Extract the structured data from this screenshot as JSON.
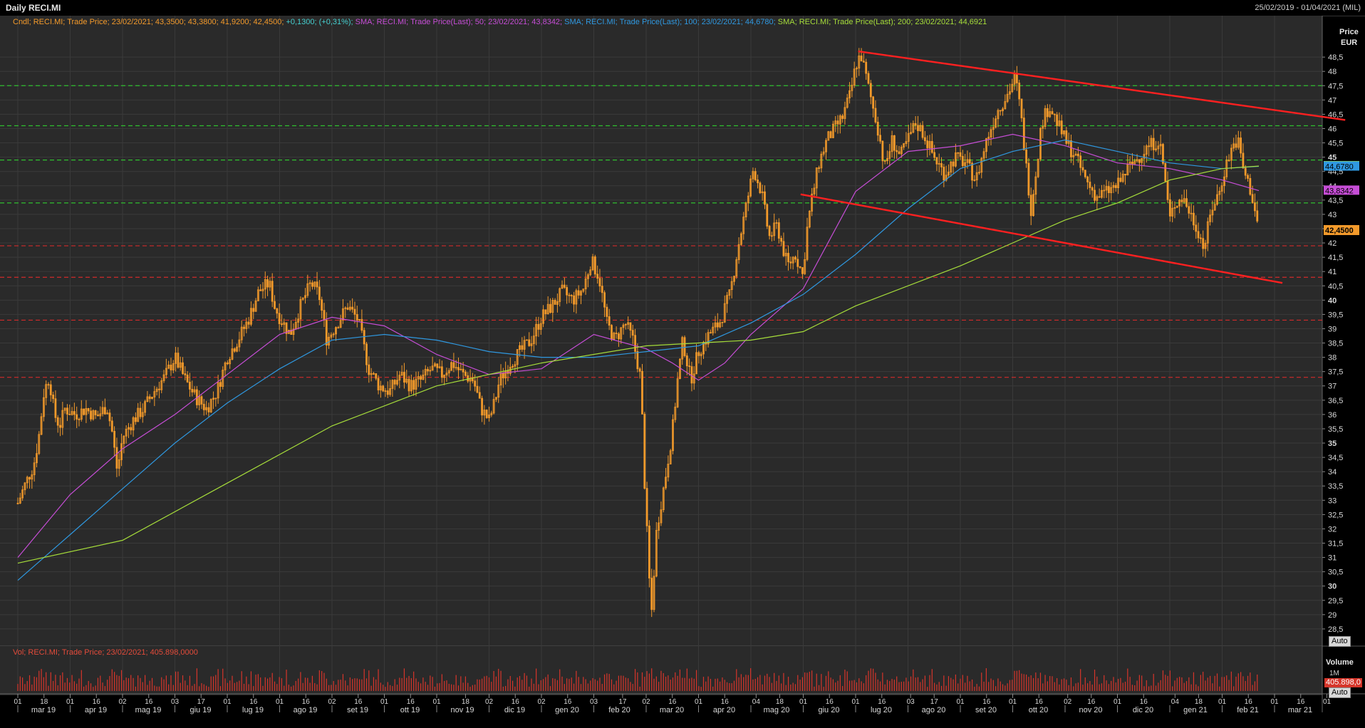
{
  "window": {
    "title": "Daily RECI.MI",
    "date_range": "25/02/2019 - 01/04/2021 (MIL)"
  },
  "legend": {
    "candle": "Cndl; RECI.MI; Trade Price; 23/02/2021; 43,3500; 43,3800; 41,9200; 42,4500; ",
    "candle_change": "+0,1300; (+0,31%);",
    "sma50": " SMA; RECI.MI; Trade Price(Last); 50; 23/02/2021; 43,8342;",
    "sma100": " SMA; RECI.MI; Trade Price(Last); 100; 23/02/2021; 44,6780;",
    "sma200": " SMA; RECI.MI; Trade Price(Last); 200; 23/02/2021; 44,6921"
  },
  "volume_legend": "Vol; RECI.MI; Trade Price; 23/02/2021; 405.898,0000",
  "price_axis": {
    "title_line1": "Price",
    "title_line2": "EUR",
    "auto_label": "Auto"
  },
  "volume_axis": {
    "title": "Volume",
    "tick_1m": "1M",
    "auto_label": "Auto",
    "last_volume_tag": "405.898,0"
  },
  "colors": {
    "candle": "#f39a2b",
    "sma50": "#c64dd6",
    "sma100": "#2f98e0",
    "sma200": "#a6dd3a",
    "trendline": "#ff2020",
    "support_green": "#2fbf2f",
    "support_red": "#d12a2a",
    "volume": "#d6352a"
  },
  "chart_data": {
    "type": "candlestick",
    "symbol": "RECI.MI",
    "interval": "Daily",
    "currency": "EUR",
    "ylim": [
      28,
      49.5
    ],
    "y_ticks": [
      "28,5",
      "29",
      "29,5",
      "30",
      "30,5",
      "31",
      "31,5",
      "32",
      "32,5",
      "33",
      "33,5",
      "34",
      "34,5",
      "35",
      "35,5",
      "36",
      "36,5",
      "37",
      "37,5",
      "38",
      "38,5",
      "39",
      "39,5",
      "40",
      "40,5",
      "41",
      "41,5",
      "42",
      "42,5",
      "43",
      "43,5",
      "44",
      "44,5",
      "45",
      "45,5",
      "46",
      "46,5",
      "47",
      "47,5",
      "48",
      "48,5"
    ],
    "bold_ticks": [
      "30",
      "35",
      "40",
      "45"
    ],
    "x_day_ticks": [
      {
        "label": "01",
        "m": 0
      },
      {
        "label": "18",
        "m": 0.5
      },
      {
        "label": "01",
        "m": 1
      },
      {
        "label": "16",
        "m": 1.5
      },
      {
        "label": "02",
        "m": 2
      },
      {
        "label": "16",
        "m": 2.5
      },
      {
        "label": "03",
        "m": 3
      },
      {
        "label": "17",
        "m": 3.5
      },
      {
        "label": "01",
        "m": 4
      },
      {
        "label": "16",
        "m": 4.5
      },
      {
        "label": "01",
        "m": 5
      },
      {
        "label": "16",
        "m": 5.5
      },
      {
        "label": "02",
        "m": 6
      },
      {
        "label": "16",
        "m": 6.5
      },
      {
        "label": "01",
        "m": 7
      },
      {
        "label": "16",
        "m": 7.5
      },
      {
        "label": "01",
        "m": 8
      },
      {
        "label": "18",
        "m": 8.55
      },
      {
        "label": "02",
        "m": 9
      },
      {
        "label": "16",
        "m": 9.5
      },
      {
        "label": "02",
        "m": 10
      },
      {
        "label": "16",
        "m": 10.5
      },
      {
        "label": "03",
        "m": 11
      },
      {
        "label": "17",
        "m": 11.55
      },
      {
        "label": "02",
        "m": 12
      },
      {
        "label": "16",
        "m": 12.5
      },
      {
        "label": "01",
        "m": 13
      },
      {
        "label": "16",
        "m": 13.5
      },
      {
        "label": "04",
        "m": 14.1
      },
      {
        "label": "18",
        "m": 14.55
      },
      {
        "label": "01",
        "m": 15
      },
      {
        "label": "16",
        "m": 15.5
      },
      {
        "label": "01",
        "m": 16
      },
      {
        "label": "16",
        "m": 16.5
      },
      {
        "label": "03",
        "m": 17.05
      },
      {
        "label": "17",
        "m": 17.5
      },
      {
        "label": "01",
        "m": 18
      },
      {
        "label": "16",
        "m": 18.5
      },
      {
        "label": "01",
        "m": 19
      },
      {
        "label": "16",
        "m": 19.5
      },
      {
        "label": "02",
        "m": 20.05
      },
      {
        "label": "16",
        "m": 20.5
      },
      {
        "label": "01",
        "m": 21
      },
      {
        "label": "16",
        "m": 21.5
      },
      {
        "label": "04",
        "m": 22.1
      },
      {
        "label": "18",
        "m": 22.55
      },
      {
        "label": "01",
        "m": 23
      },
      {
        "label": "16",
        "m": 23.5
      },
      {
        "label": "01",
        "m": 24
      },
      {
        "label": "16",
        "m": 24.5
      },
      {
        "label": "01",
        "m": 25
      }
    ],
    "x_month_labels": [
      {
        "label": "mar 19",
        "m": 0
      },
      {
        "label": "apr 19",
        "m": 1
      },
      {
        "label": "mag 19",
        "m": 2
      },
      {
        "label": "giu 19",
        "m": 3
      },
      {
        "label": "lug 19",
        "m": 4
      },
      {
        "label": "ago 19",
        "m": 5
      },
      {
        "label": "set 19",
        "m": 6
      },
      {
        "label": "ott 19",
        "m": 7
      },
      {
        "label": "nov 19",
        "m": 8
      },
      {
        "label": "dic 19",
        "m": 9
      },
      {
        "label": "gen 20",
        "m": 10
      },
      {
        "label": "feb 20",
        "m": 11
      },
      {
        "label": "mar 20",
        "m": 12
      },
      {
        "label": "apr 20",
        "m": 13
      },
      {
        "label": "mag 20",
        "m": 14
      },
      {
        "label": "giu 20",
        "m": 15
      },
      {
        "label": "lug 20",
        "m": 16
      },
      {
        "label": "ago 20",
        "m": 17
      },
      {
        "label": "set 20",
        "m": 18
      },
      {
        "label": "ott 20",
        "m": 19
      },
      {
        "label": "nov 20",
        "m": 20
      },
      {
        "label": "dic 20",
        "m": 21
      },
      {
        "label": "gen 21",
        "m": 22
      },
      {
        "label": "feb 21",
        "m": 23
      },
      {
        "label": "mar 21",
        "m": 24
      }
    ],
    "price_path": [
      [
        0,
        32.9
      ],
      [
        0.15,
        33.6
      ],
      [
        0.3,
        34.2
      ],
      [
        0.4,
        35.2
      ],
      [
        0.5,
        36.8
      ],
      [
        0.6,
        37.3
      ],
      [
        0.7,
        36.0
      ],
      [
        0.8,
        35.6
      ],
      [
        0.9,
        36.2
      ],
      [
        1.1,
        36.0
      ],
      [
        1.3,
        36.2
      ],
      [
        1.5,
        35.9
      ],
      [
        1.7,
        36.3
      ],
      [
        1.8,
        35.4
      ],
      [
        1.9,
        34.0
      ],
      [
        2.0,
        35.2
      ],
      [
        2.2,
        35.8
      ],
      [
        2.4,
        36.2
      ],
      [
        2.6,
        36.8
      ],
      [
        2.8,
        37.3
      ],
      [
        3.0,
        38.0
      ],
      [
        3.2,
        37.2
      ],
      [
        3.4,
        36.6
      ],
      [
        3.6,
        36.2
      ],
      [
        3.8,
        36.8
      ],
      [
        4.0,
        38.0
      ],
      [
        4.2,
        38.6
      ],
      [
        4.4,
        39.3
      ],
      [
        4.6,
        40.3
      ],
      [
        4.8,
        40.6
      ],
      [
        4.9,
        39.8
      ],
      [
        5.0,
        39.4
      ],
      [
        5.2,
        38.8
      ],
      [
        5.4,
        39.8
      ],
      [
        5.6,
        40.6
      ],
      [
        5.75,
        40.2
      ],
      [
        5.9,
        38.6
      ],
      [
        6.1,
        39.2
      ],
      [
        6.3,
        39.8
      ],
      [
        6.5,
        39.3
      ],
      [
        6.7,
        37.6
      ],
      [
        6.9,
        37.0
      ],
      [
        7.1,
        36.8
      ],
      [
        7.3,
        37.4
      ],
      [
        7.5,
        37.0
      ],
      [
        7.7,
        37.2
      ],
      [
        7.9,
        37.6
      ],
      [
        8.1,
        37.4
      ],
      [
        8.3,
        37.8
      ],
      [
        8.5,
        37.4
      ],
      [
        8.7,
        37.2
      ],
      [
        8.85,
        36.2
      ],
      [
        9.0,
        35.8
      ],
      [
        9.1,
        36.4
      ],
      [
        9.2,
        37.2
      ],
      [
        9.4,
        37.8
      ],
      [
        9.6,
        38.2
      ],
      [
        9.8,
        38.6
      ],
      [
        10.0,
        39.4
      ],
      [
        10.2,
        39.8
      ],
      [
        10.4,
        40.3
      ],
      [
        10.6,
        40.0
      ],
      [
        10.8,
        40.4
      ],
      [
        10.95,
        41.4
      ],
      [
        11.1,
        40.8
      ],
      [
        11.25,
        39.2
      ],
      [
        11.4,
        38.6
      ],
      [
        11.6,
        39.2
      ],
      [
        11.75,
        38.6
      ],
      [
        11.9,
        37.2
      ],
      [
        11.96,
        34.0
      ],
      [
        12.05,
        30.5
      ],
      [
        12.1,
        29.0
      ],
      [
        12.2,
        32.0
      ],
      [
        12.35,
        33.6
      ],
      [
        12.5,
        35.4
      ],
      [
        12.6,
        37.2
      ],
      [
        12.7,
        38.6
      ],
      [
        12.85,
        37.2
      ],
      [
        13.0,
        38.2
      ],
      [
        13.2,
        38.8
      ],
      [
        13.4,
        39.2
      ],
      [
        13.6,
        40.2
      ],
      [
        13.75,
        41.8
      ],
      [
        13.9,
        43.2
      ],
      [
        14.05,
        44.6
      ],
      [
        14.2,
        43.8
      ],
      [
        14.35,
        42.2
      ],
      [
        14.5,
        42.6
      ],
      [
        14.7,
        41.2
      ],
      [
        14.85,
        41.6
      ],
      [
        15.0,
        40.8
      ],
      [
        15.05,
        42.2
      ],
      [
        15.15,
        43.4
      ],
      [
        15.3,
        44.8
      ],
      [
        15.45,
        45.6
      ],
      [
        15.6,
        46.0
      ],
      [
        15.75,
        46.4
      ],
      [
        15.9,
        47.2
      ],
      [
        16.0,
        48.2
      ],
      [
        16.1,
        48.6
      ],
      [
        16.2,
        47.8
      ],
      [
        16.3,
        47.0
      ],
      [
        16.45,
        45.8
      ],
      [
        16.55,
        44.6
      ],
      [
        16.7,
        45.6
      ],
      [
        16.85,
        45.0
      ],
      [
        17.0,
        45.6
      ],
      [
        17.15,
        46.2
      ],
      [
        17.3,
        45.8
      ],
      [
        17.5,
        45.0
      ],
      [
        17.7,
        44.4
      ],
      [
        17.9,
        45.0
      ],
      [
        18.1,
        44.8
      ],
      [
        18.3,
        44.2
      ],
      [
        18.5,
        45.6
      ],
      [
        18.7,
        46.6
      ],
      [
        18.9,
        47.2
      ],
      [
        19.05,
        47.8
      ],
      [
        19.15,
        46.6
      ],
      [
        19.25,
        44.8
      ],
      [
        19.35,
        43.2
      ],
      [
        19.45,
        44.6
      ],
      [
        19.55,
        46.2
      ],
      [
        19.7,
        46.8
      ],
      [
        19.85,
        46.2
      ],
      [
        20.0,
        45.6
      ],
      [
        20.2,
        45.0
      ],
      [
        20.4,
        44.2
      ],
      [
        20.6,
        43.6
      ],
      [
        20.8,
        43.8
      ],
      [
        21.0,
        44.0
      ],
      [
        21.2,
        44.6
      ],
      [
        21.4,
        45.0
      ],
      [
        21.6,
        45.4
      ],
      [
        21.8,
        45.6
      ],
      [
        21.9,
        44.4
      ],
      [
        22.0,
        42.8
      ],
      [
        22.1,
        43.4
      ],
      [
        22.25,
        43.6
      ],
      [
        22.4,
        43.0
      ],
      [
        22.55,
        42.4
      ],
      [
        22.65,
        41.8
      ],
      [
        22.8,
        43.2
      ],
      [
        22.95,
        43.8
      ],
      [
        23.05,
        44.6
      ],
      [
        23.2,
        45.4
      ],
      [
        23.3,
        45.6
      ],
      [
        23.4,
        44.6
      ],
      [
        23.55,
        43.8
      ],
      [
        23.7,
        42.45
      ]
    ],
    "series": [
      {
        "name": "SMA 50",
        "last": "43,8342",
        "path": [
          [
            0,
            31.0
          ],
          [
            1,
            33.2
          ],
          [
            2,
            34.8
          ],
          [
            3,
            36.0
          ],
          [
            4,
            37.4
          ],
          [
            5,
            38.8
          ],
          [
            6,
            39.4
          ],
          [
            7,
            39.1
          ],
          [
            8,
            38.1
          ],
          [
            9,
            37.4
          ],
          [
            10,
            37.6
          ],
          [
            11,
            38.8
          ],
          [
            12,
            38.3
          ],
          [
            12.5,
            37.8
          ],
          [
            13,
            37.2
          ],
          [
            13.5,
            37.8
          ],
          [
            14,
            38.8
          ],
          [
            15,
            40.4
          ],
          [
            16,
            43.8
          ],
          [
            17,
            45.2
          ],
          [
            18,
            45.4
          ],
          [
            19,
            45.8
          ],
          [
            20,
            45.4
          ],
          [
            21,
            44.8
          ],
          [
            22,
            44.6
          ],
          [
            23,
            44.2
          ],
          [
            23.7,
            43.83
          ]
        ]
      },
      {
        "name": "SMA 100",
        "last": "44,6780",
        "path": [
          [
            0,
            30.2
          ],
          [
            1,
            31.8
          ],
          [
            2,
            33.4
          ],
          [
            3,
            35.0
          ],
          [
            4,
            36.4
          ],
          [
            5,
            37.6
          ],
          [
            6,
            38.6
          ],
          [
            7,
            38.8
          ],
          [
            8,
            38.6
          ],
          [
            9,
            38.2
          ],
          [
            10,
            38.0
          ],
          [
            11,
            38.0
          ],
          [
            12,
            38.2
          ],
          [
            13,
            38.4
          ],
          [
            14,
            39.2
          ],
          [
            15,
            40.2
          ],
          [
            16,
            41.6
          ],
          [
            17,
            43.2
          ],
          [
            18,
            44.6
          ],
          [
            19,
            45.2
          ],
          [
            20,
            45.6
          ],
          [
            21,
            45.2
          ],
          [
            22,
            44.8
          ],
          [
            23,
            44.6
          ],
          [
            23.7,
            44.68
          ]
        ]
      },
      {
        "name": "SMA 200",
        "last": "44,6921",
        "path": [
          [
            0,
            30.8
          ],
          [
            2,
            31.6
          ],
          [
            4,
            33.6
          ],
          [
            6,
            35.6
          ],
          [
            8,
            37.0
          ],
          [
            10,
            37.8
          ],
          [
            12,
            38.4
          ],
          [
            14,
            38.6
          ],
          [
            15,
            38.9
          ],
          [
            16,
            39.8
          ],
          [
            18,
            41.2
          ],
          [
            19,
            42.0
          ],
          [
            20,
            42.8
          ],
          [
            21,
            43.4
          ],
          [
            22,
            44.2
          ],
          [
            23,
            44.6
          ],
          [
            23.7,
            44.69
          ]
        ]
      }
    ],
    "horizontal_levels": [
      {
        "y": 47.5,
        "kind": "green"
      },
      {
        "y": 46.1,
        "kind": "green"
      },
      {
        "y": 44.9,
        "kind": "green"
      },
      {
        "y": 43.4,
        "kind": "green"
      },
      {
        "y": 41.9,
        "kind": "red"
      },
      {
        "y": 40.8,
        "kind": "red"
      },
      {
        "y": 39.3,
        "kind": "red"
      },
      {
        "y": 37.3,
        "kind": "red"
      }
    ],
    "trendlines": [
      {
        "from": [
          16.05,
          48.7
        ],
        "to": [
          25.35,
          46.3
        ]
      },
      {
        "from": [
          14.95,
          43.7
        ],
        "to": [
          24.15,
          40.6
        ]
      }
    ],
    "last_price": {
      "value": 42.45,
      "label": "42,4500"
    },
    "axis_tags": [
      {
        "value": 44.6921,
        "label": "44,6921",
        "series": "SMA 200"
      },
      {
        "value": 44.678,
        "label": "44,6780",
        "series": "SMA 100"
      },
      {
        "value": 43.8342,
        "label": "43,8342",
        "series": "SMA 50"
      }
    ],
    "volume": {
      "ylim": [
        0,
        1300000
      ],
      "last": 405898
    }
  }
}
